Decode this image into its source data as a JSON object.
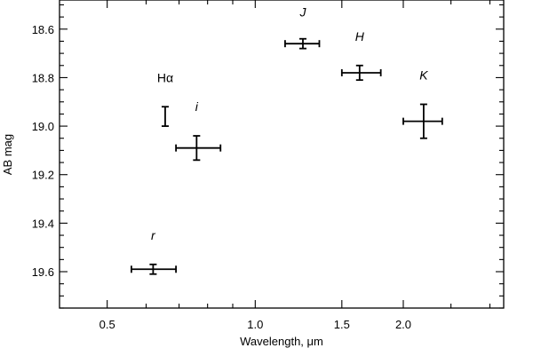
{
  "chart_data": {
    "type": "scatter",
    "title": "",
    "xlabel": "Wavelength, μm",
    "ylabel": "AB mag",
    "x_scale": "log",
    "xlim": [
      0.4,
      3.2
    ],
    "ylim": [
      19.75,
      18.48
    ],
    "x_ticks": [
      {
        "value": 0.5,
        "label": "0.5"
      },
      {
        "value": 1.0,
        "label": "1.0"
      },
      {
        "value": 1.5,
        "label": "1.5"
      },
      {
        "value": 2.0,
        "label": "2.0"
      }
    ],
    "x_minor_ticks": [
      0.6,
      0.7,
      0.8,
      0.9,
      2.5,
      3.0
    ],
    "y_ticks": [
      {
        "value": 18.6,
        "label": "18.6"
      },
      {
        "value": 18.8,
        "label": "18.8"
      },
      {
        "value": 19.0,
        "label": "19.0"
      },
      {
        "value": 19.2,
        "label": "19.2"
      },
      {
        "value": 19.4,
        "label": "19.4"
      },
      {
        "value": 19.6,
        "label": "19.6"
      }
    ],
    "y_minor_step": 0.05,
    "grid": false,
    "points": [
      {
        "label": "r",
        "italic": true,
        "x": 0.62,
        "y": 19.59,
        "x_err": [
          0.56,
          0.69
        ],
        "y_err": 0.02,
        "label_y": 19.45
      },
      {
        "label": "Hα",
        "italic": false,
        "x": 0.656,
        "y": 18.96,
        "x_err": null,
        "y_err": 0.04,
        "label_y": 18.8
      },
      {
        "label": "i",
        "italic": true,
        "x": 0.76,
        "y": 19.09,
        "x_err": [
          0.69,
          0.85
        ],
        "y_err": 0.05,
        "label_y": 18.92
      },
      {
        "label": "J",
        "italic": true,
        "x": 1.25,
        "y": 18.66,
        "x_err": [
          1.15,
          1.35
        ],
        "y_err": 0.02,
        "label_y": 18.53
      },
      {
        "label": "H",
        "italic": true,
        "x": 1.63,
        "y": 18.78,
        "x_err": [
          1.5,
          1.8
        ],
        "y_err": 0.03,
        "label_y": 18.63
      },
      {
        "label": "K",
        "italic": true,
        "x": 2.2,
        "y": 18.98,
        "x_err": [
          2.0,
          2.4
        ],
        "y_err": 0.07,
        "label_y": 18.79
      }
    ]
  }
}
